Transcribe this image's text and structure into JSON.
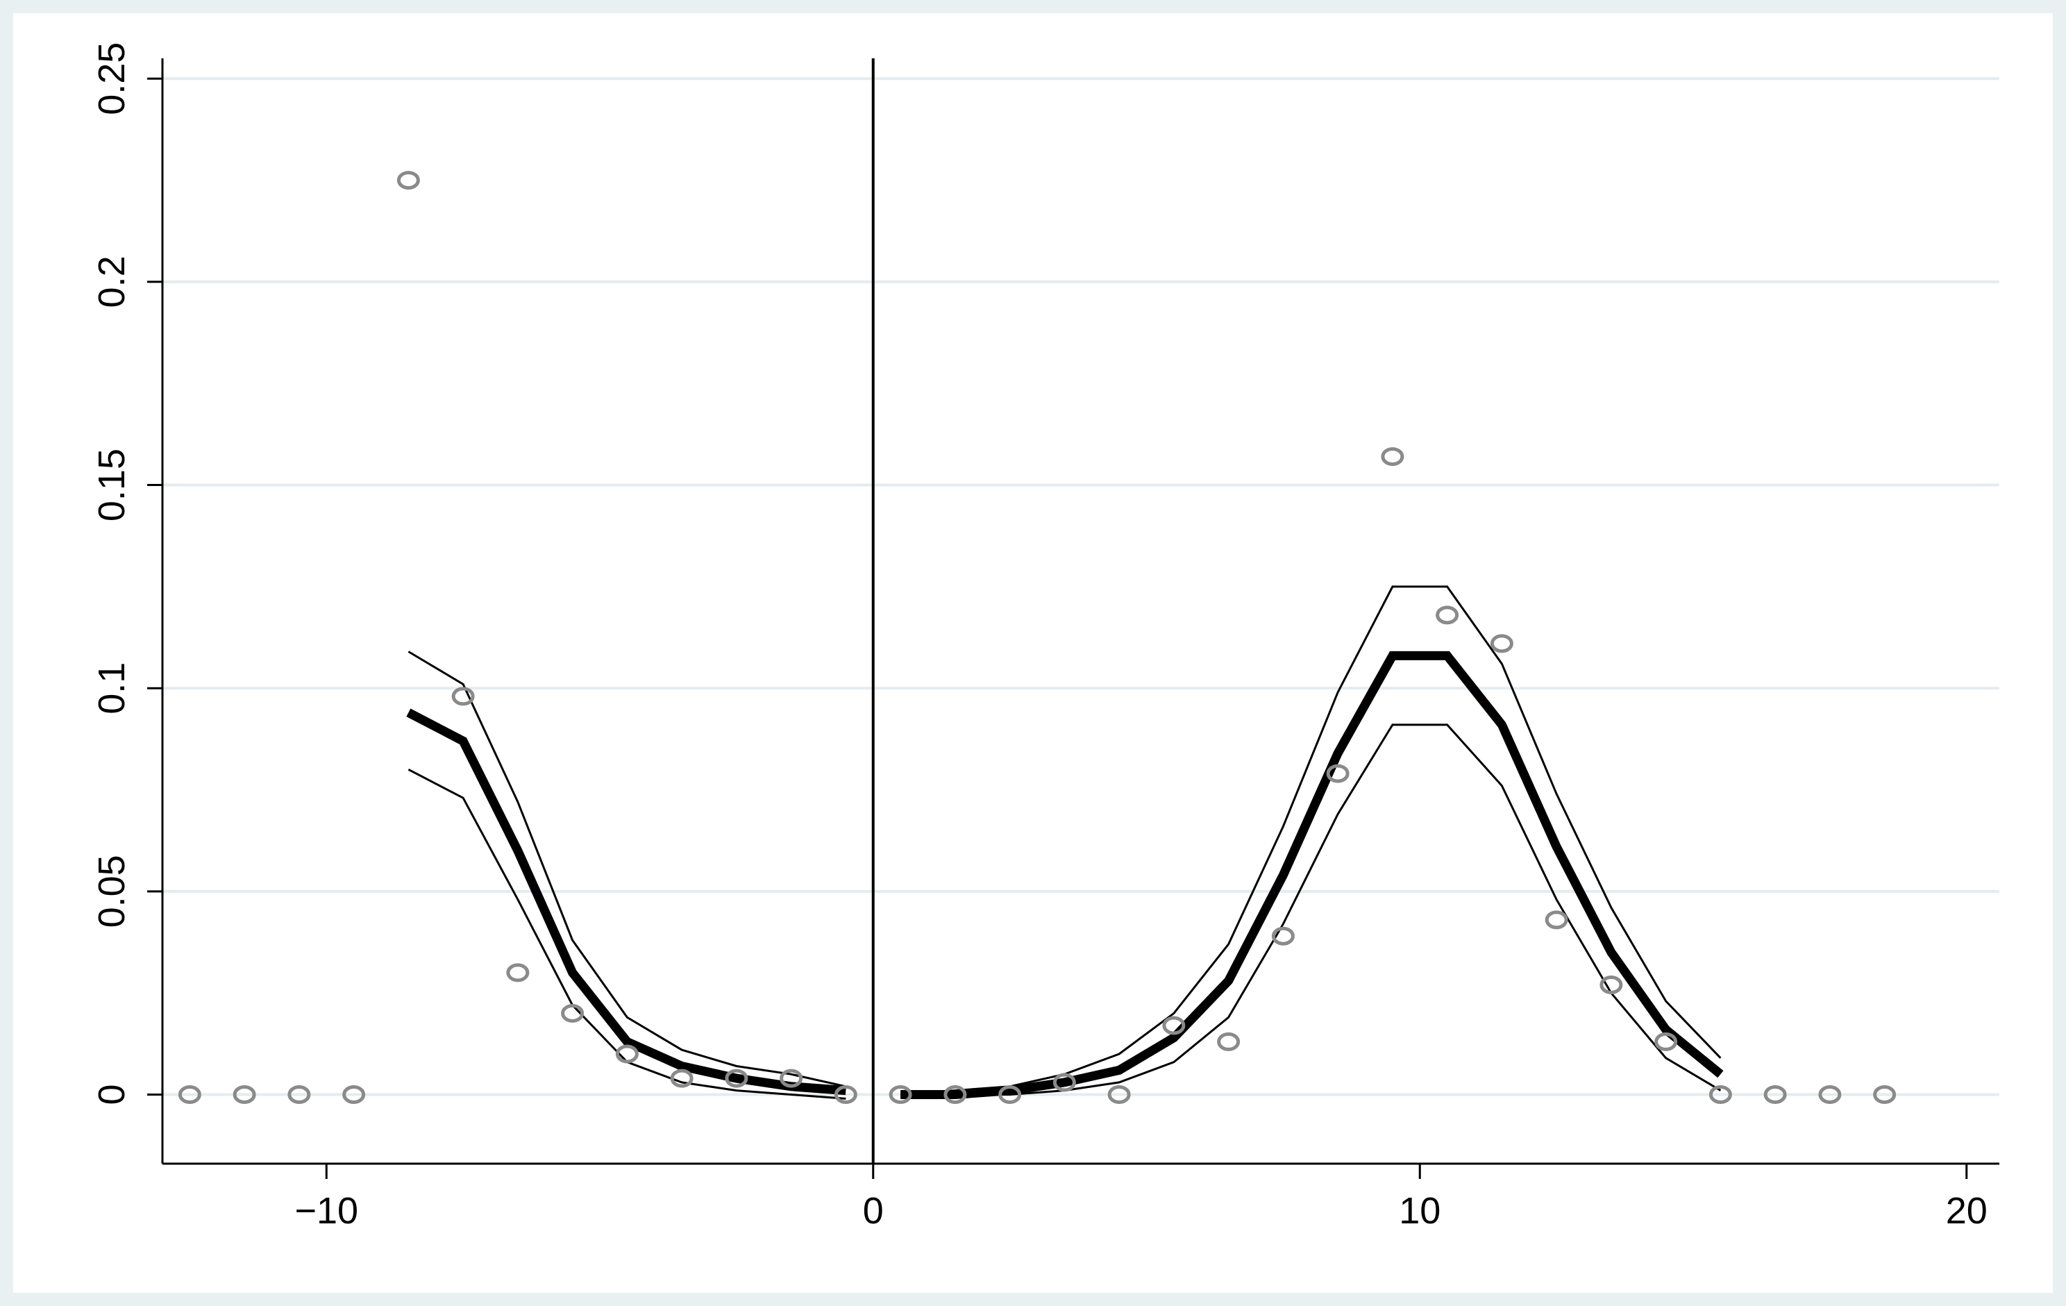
{
  "chart_data": {
    "type": "scatter",
    "title": "",
    "xlabel": "",
    "ylabel": "",
    "xlim": [
      -13,
      20.6
    ],
    "ylim": [
      -0.017,
      0.255
    ],
    "x_ticks": [
      -10,
      0,
      10,
      20
    ],
    "x_tick_labels": [
      "−10",
      "0",
      "10",
      "20"
    ],
    "y_ticks": [
      0,
      0.05,
      0.1,
      0.15,
      0.2,
      0.25
    ],
    "y_tick_labels": [
      "0",
      "0.05",
      "0.1",
      "0.15",
      "0.2",
      "0.25"
    ],
    "grid": "horizontal",
    "legend": "none",
    "cutoff_line_x": 0,
    "colors": {
      "background": "#e9f0f2",
      "panel": "#ffffff",
      "grid": "#e4ecef",
      "points": "#8a8a8a",
      "fit": "#000000",
      "ci": "#000000"
    },
    "series": [
      {
        "kind": "points",
        "x": [
          -12.5,
          -11.5,
          -10.5,
          -9.5,
          -8.5,
          -7.5,
          -6.5,
          -5.5,
          -4.5,
          -3.5,
          -2.5,
          -1.5,
          -0.5,
          0.5,
          1.5,
          2.5,
          3.5,
          4.5,
          5.5,
          6.5,
          7.5,
          8.5,
          9.5,
          10.5,
          11.5,
          12.5,
          13.5,
          14.5,
          15.5,
          16.5,
          17.5,
          18.5
        ],
        "y": [
          0,
          0,
          0,
          0,
          0.225,
          0.098,
          0.03,
          0.02,
          0.01,
          0.004,
          0.004,
          0.004,
          0,
          0,
          0,
          0,
          0.003,
          0,
          0.017,
          0.013,
          0.039,
          0.079,
          0.157,
          0.118,
          0.111,
          0.043,
          0.027,
          0.013,
          0,
          0,
          0,
          0
        ]
      },
      {
        "kind": "fit",
        "segments": [
          {
            "x": [
              -8.5,
              -7.5,
              -6.5,
              -5.5,
              -4.5,
              -3.5,
              -2.5,
              -1.5,
              -0.5
            ],
            "y": [
              0.094,
              0.087,
              0.06,
              0.03,
              0.013,
              0.007,
              0.004,
              0.002,
              0.001
            ]
          },
          {
            "x": [
              0.5,
              1.5,
              2.5,
              3.5,
              4.5,
              5.5,
              6.5,
              7.5,
              8.5,
              9.5,
              10.5,
              11.5,
              12.5,
              13.5,
              14.5,
              15.5
            ],
            "y": [
              0,
              0,
              0.001,
              0.003,
              0.006,
              0.014,
              0.028,
              0.054,
              0.084,
              0.108,
              0.108,
              0.091,
              0.061,
              0.035,
              0.016,
              0.005
            ]
          }
        ]
      },
      {
        "kind": "ci_upper",
        "segments": [
          {
            "x": [
              -8.5,
              -7.5,
              -6.5,
              -5.5,
              -4.5,
              -3.5,
              -2.5,
              -1.5,
              -0.5
            ],
            "y": [
              0.109,
              0.101,
              0.072,
              0.038,
              0.019,
              0.011,
              0.007,
              0.005,
              0.002
            ]
          },
          {
            "x": [
              0.5,
              1.5,
              2.5,
              3.5,
              4.5,
              5.5,
              6.5,
              7.5,
              8.5,
              9.5,
              10.5,
              11.5,
              12.5,
              13.5,
              14.5,
              15.5
            ],
            "y": [
              0,
              0.001,
              0.002,
              0.005,
              0.01,
              0.02,
              0.037,
              0.066,
              0.099,
              0.125,
              0.125,
              0.106,
              0.074,
              0.046,
              0.023,
              0.009
            ]
          }
        ]
      },
      {
        "kind": "ci_lower",
        "segments": [
          {
            "x": [
              -8.5,
              -7.5,
              -6.5,
              -5.5,
              -4.5,
              -3.5,
              -2.5,
              -1.5,
              -0.5
            ],
            "y": [
              0.08,
              0.073,
              0.048,
              0.022,
              0.008,
              0.003,
              0.001,
              0,
              -0.001
            ]
          },
          {
            "x": [
              0.5,
              1.5,
              2.5,
              3.5,
              4.5,
              5.5,
              6.5,
              7.5,
              8.5,
              9.5,
              10.5,
              11.5,
              12.5,
              13.5,
              14.5,
              15.5
            ],
            "y": [
              0,
              0,
              0,
              0.001,
              0.003,
              0.008,
              0.019,
              0.042,
              0.069,
              0.091,
              0.091,
              0.076,
              0.048,
              0.025,
              0.009,
              0.001
            ]
          }
        ]
      }
    ]
  }
}
